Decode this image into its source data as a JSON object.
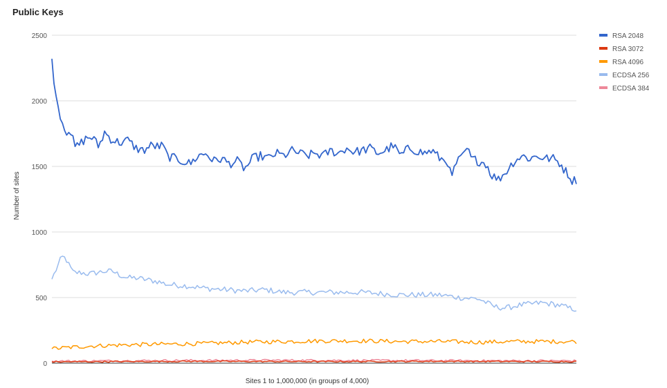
{
  "chart_data": {
    "type": "line",
    "title": "Public Keys",
    "xlabel": "Sites 1 to 1,000,000 (in groups of 4,000)",
    "ylabel": "Number of sites",
    "ylim": [
      0,
      2500
    ],
    "yticks": [
      0,
      500,
      1000,
      1500,
      2000,
      2500
    ],
    "grid": true,
    "legend_position": "right",
    "x_count": 250,
    "series": [
      {
        "name": "RSA 2048",
        "color": "#3366cc",
        "anchors": [
          [
            1,
            2320
          ],
          [
            2,
            2110
          ],
          [
            3,
            2090
          ],
          [
            4,
            1960
          ],
          [
            6,
            1860
          ],
          [
            8,
            1760
          ],
          [
            10,
            1790
          ],
          [
            13,
            1640
          ],
          [
            16,
            1680
          ],
          [
            19,
            1720
          ],
          [
            22,
            1720
          ],
          [
            25,
            1650
          ],
          [
            28,
            1760
          ],
          [
            32,
            1700
          ],
          [
            36,
            1680
          ],
          [
            40,
            1700
          ],
          [
            44,
            1640
          ],
          [
            48,
            1620
          ],
          [
            52,
            1660
          ],
          [
            56,
            1650
          ],
          [
            58,
            1660
          ],
          [
            60,
            1580
          ],
          [
            64,
            1560
          ],
          [
            68,
            1540
          ],
          [
            72,
            1520
          ],
          [
            76,
            1580
          ],
          [
            80,
            1600
          ],
          [
            84,
            1540
          ],
          [
            88,
            1560
          ],
          [
            92,
            1520
          ],
          [
            96,
            1540
          ],
          [
            100,
            1480
          ],
          [
            104,
            1560
          ],
          [
            108,
            1580
          ],
          [
            112,
            1560
          ],
          [
            116,
            1600
          ],
          [
            120,
            1580
          ],
          [
            124,
            1620
          ],
          [
            128,
            1600
          ],
          [
            132,
            1580
          ],
          [
            136,
            1600
          ],
          [
            140,
            1580
          ],
          [
            144,
            1620
          ],
          [
            148,
            1600
          ],
          [
            152,
            1640
          ],
          [
            156,
            1610
          ],
          [
            160,
            1620
          ],
          [
            164,
            1640
          ],
          [
            168,
            1600
          ],
          [
            172,
            1620
          ],
          [
            176,
            1660
          ],
          [
            180,
            1580
          ],
          [
            184,
            1640
          ],
          [
            188,
            1620
          ],
          [
            192,
            1600
          ],
          [
            196,
            1620
          ],
          [
            200,
            1560
          ],
          [
            204,
            1540
          ],
          [
            206,
            1400
          ],
          [
            208,
            1520
          ],
          [
            212,
            1580
          ],
          [
            214,
            1640
          ],
          [
            216,
            1560
          ],
          [
            220,
            1540
          ],
          [
            224,
            1520
          ],
          [
            226,
            1440
          ],
          [
            230,
            1400
          ],
          [
            234,
            1460
          ],
          [
            238,
            1540
          ],
          [
            242,
            1580
          ],
          [
            246,
            1560
          ],
          [
            250,
            1580
          ],
          [
            254,
            1560
          ],
          [
            258,
            1560
          ],
          [
            262,
            1520
          ],
          [
            264,
            1470
          ],
          [
            266,
            1440
          ],
          [
            268,
            1390
          ],
          [
            270,
            1400
          ]
        ],
        "noise": 35
      },
      {
        "name": "RSA 3072",
        "color": "#dc3912",
        "anchors": [
          [
            1,
            10
          ],
          [
            70,
            14
          ],
          [
            140,
            12
          ],
          [
            200,
            14
          ],
          [
            270,
            12
          ]
        ],
        "noise": 5
      },
      {
        "name": "RSA 4096",
        "color": "#ff9900",
        "anchors": [
          [
            1,
            110
          ],
          [
            20,
            130
          ],
          [
            40,
            140
          ],
          [
            60,
            145
          ],
          [
            80,
            150
          ],
          [
            100,
            160
          ],
          [
            120,
            165
          ],
          [
            140,
            170
          ],
          [
            160,
            170
          ],
          [
            180,
            165
          ],
          [
            200,
            165
          ],
          [
            220,
            160
          ],
          [
            240,
            165
          ],
          [
            260,
            165
          ],
          [
            270,
            165
          ]
        ],
        "noise": 16
      },
      {
        "name": "ECDSA 256",
        "color": "#99bbee",
        "anchors": [
          [
            1,
            640
          ],
          [
            4,
            740
          ],
          [
            6,
            810
          ],
          [
            8,
            800
          ],
          [
            10,
            740
          ],
          [
            12,
            690
          ],
          [
            16,
            690
          ],
          [
            20,
            680
          ],
          [
            24,
            690
          ],
          [
            28,
            700
          ],
          [
            32,
            700
          ],
          [
            36,
            670
          ],
          [
            40,
            650
          ],
          [
            44,
            650
          ],
          [
            48,
            640
          ],
          [
            52,
            630
          ],
          [
            56,
            620
          ],
          [
            60,
            600
          ],
          [
            70,
            590
          ],
          [
            80,
            570
          ],
          [
            90,
            560
          ],
          [
            100,
            550
          ],
          [
            110,
            560
          ],
          [
            120,
            540
          ],
          [
            130,
            540
          ],
          [
            140,
            540
          ],
          [
            150,
            540
          ],
          [
            160,
            540
          ],
          [
            170,
            530
          ],
          [
            180,
            520
          ],
          [
            190,
            520
          ],
          [
            200,
            520
          ],
          [
            210,
            500
          ],
          [
            220,
            490
          ],
          [
            228,
            430
          ],
          [
            234,
            420
          ],
          [
            240,
            440
          ],
          [
            246,
            450
          ],
          [
            252,
            460
          ],
          [
            258,
            450
          ],
          [
            262,
            440
          ],
          [
            266,
            420
          ],
          [
            270,
            410
          ]
        ],
        "noise": 22
      },
      {
        "name": "ECDSA 384",
        "color": "#ee8899",
        "anchors": [
          [
            1,
            15
          ],
          [
            60,
            20
          ],
          [
            120,
            22
          ],
          [
            180,
            20
          ],
          [
            230,
            18
          ],
          [
            270,
            18
          ]
        ],
        "noise": 8
      }
    ]
  }
}
